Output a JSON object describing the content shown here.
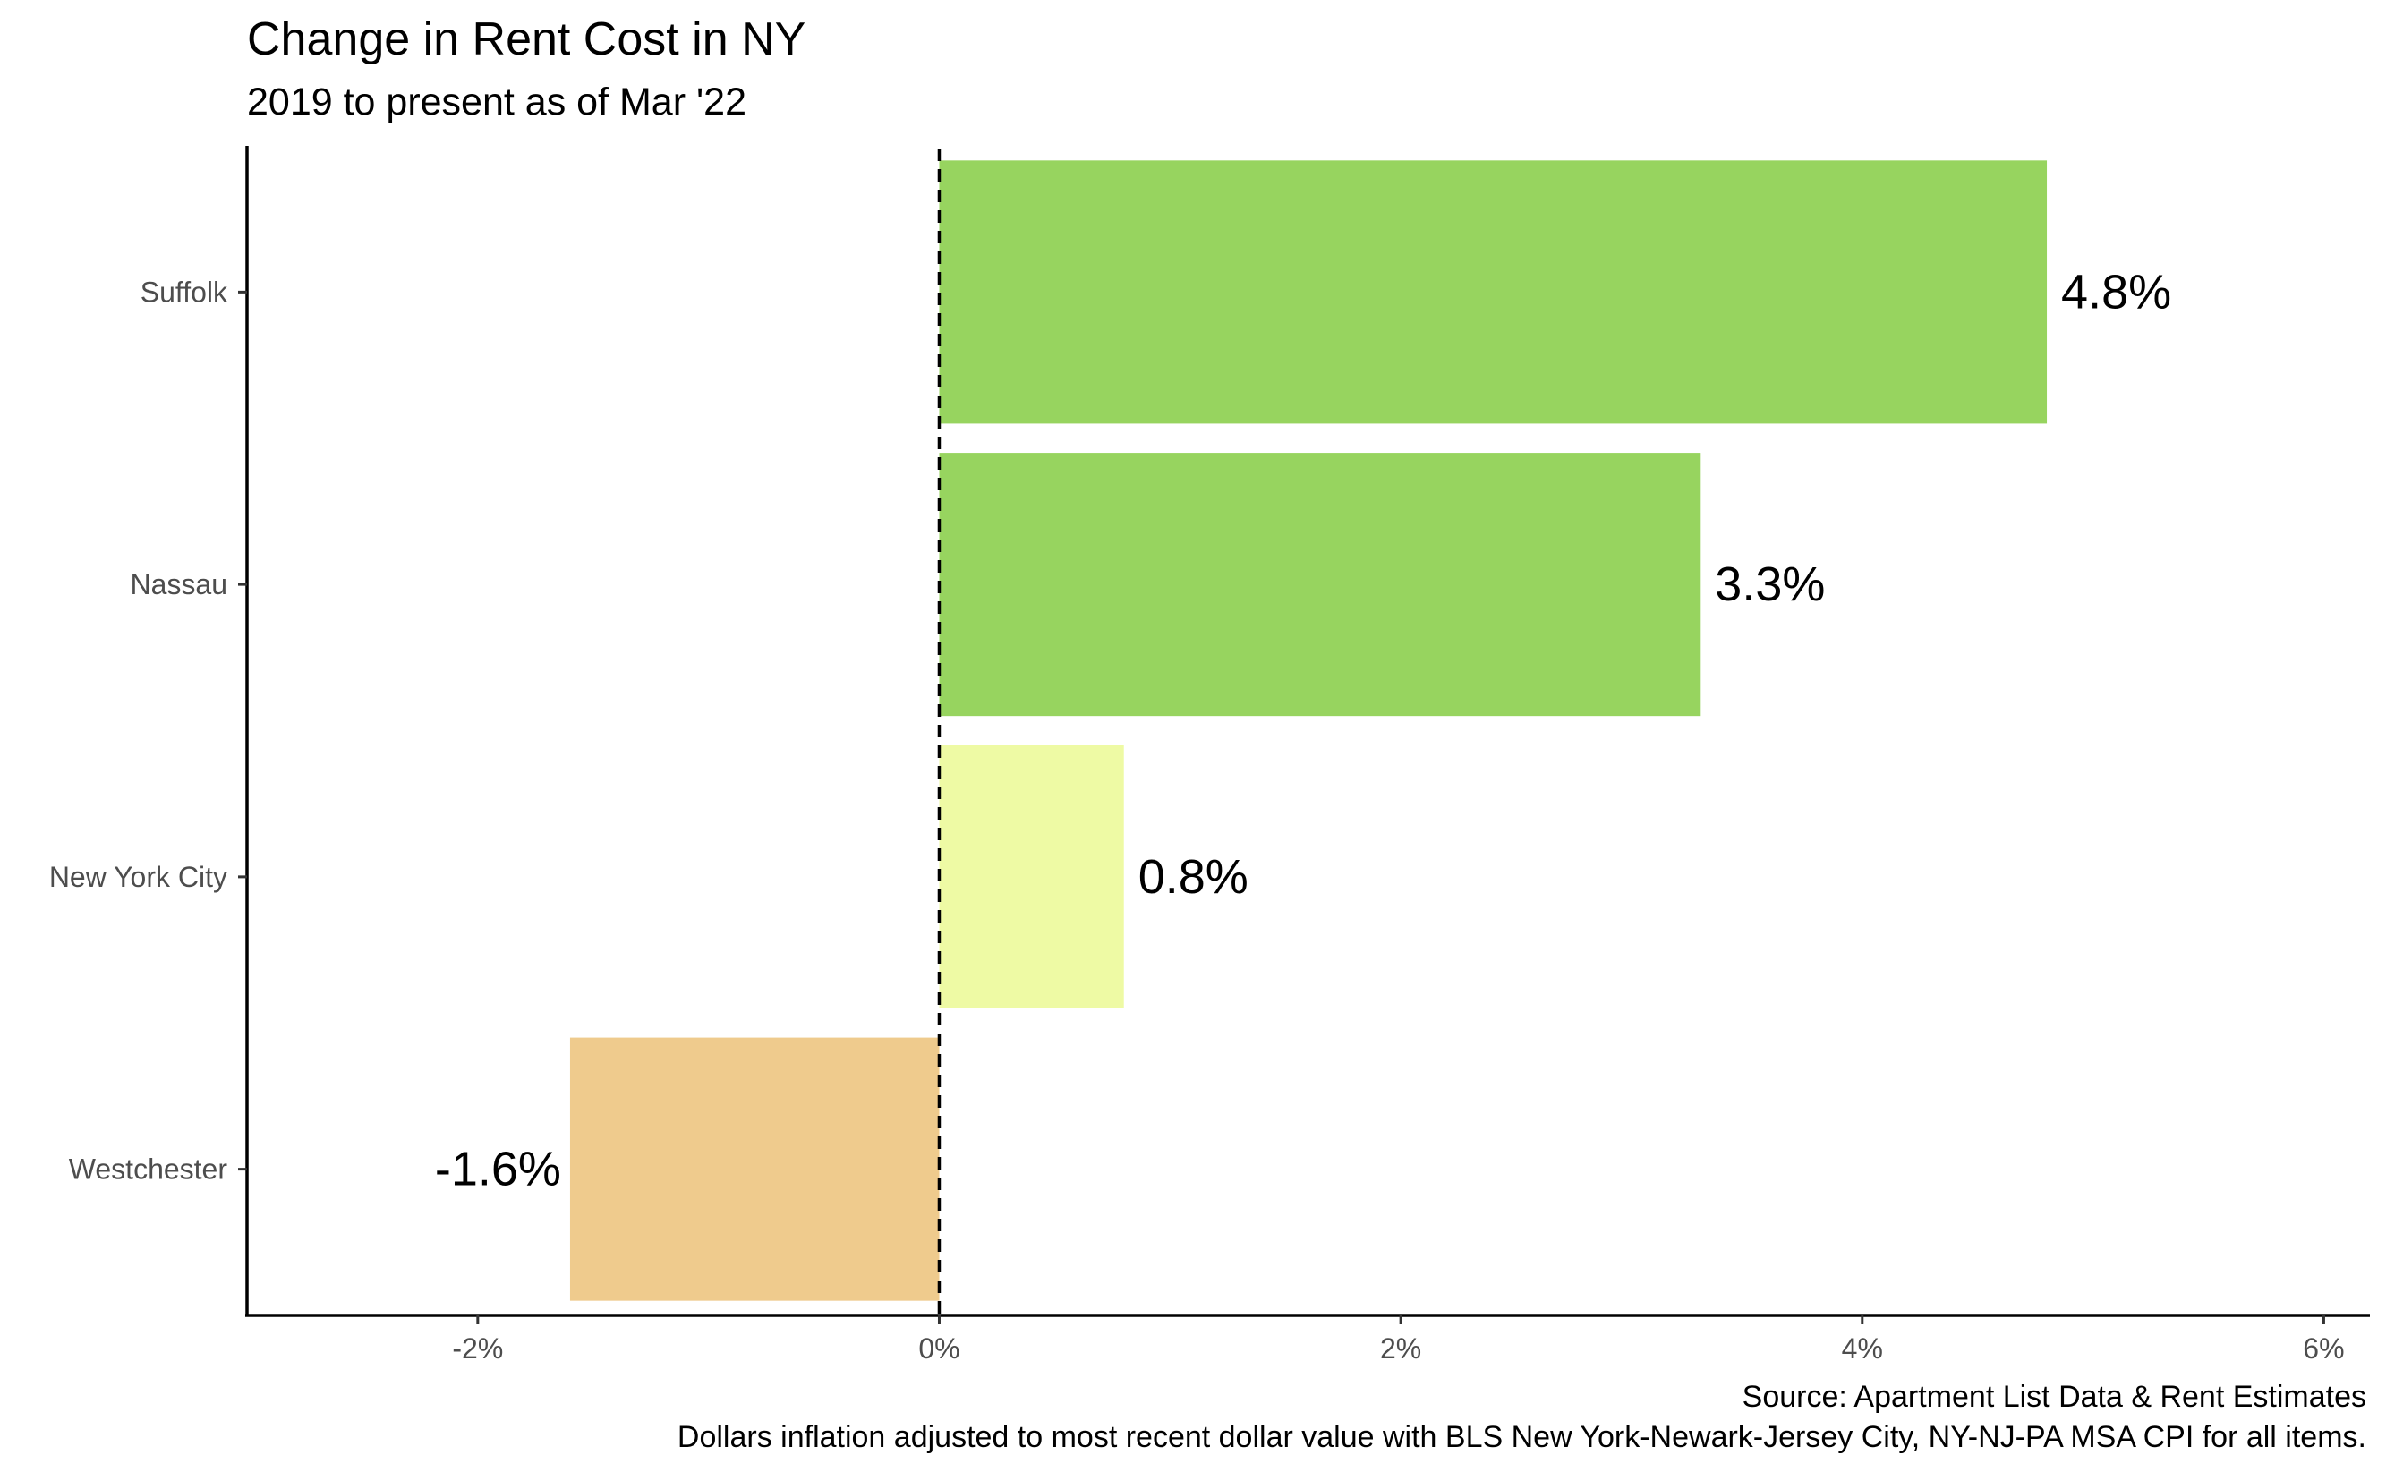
{
  "chart_data": {
    "type": "bar",
    "orientation": "horizontal",
    "title": "Change in Rent Cost in NY",
    "subtitle": "2019 to present as of Mar '22",
    "categories": [
      "Suffolk",
      "Nassau",
      "New York City",
      "Westchester"
    ],
    "values": [
      4.8,
      3.3,
      0.8,
      -1.6
    ],
    "value_labels": [
      "4.8%",
      "3.3%",
      "0.8%",
      "-1.6%"
    ],
    "colors": [
      "#97d45f",
      "#97d45f",
      "#eefaa4",
      "#efcb8d"
    ],
    "xlim": [
      -3,
      6.2
    ],
    "x_ticks": [
      -2,
      0,
      2,
      4,
      6
    ],
    "x_tick_labels": [
      "-2%",
      "0%",
      "2%",
      "4%",
      "6%"
    ],
    "reference_line": 0,
    "xlabel": "",
    "ylabel": "",
    "grid": false,
    "caption": [
      "Source: Apartment List Data & Rent Estimates",
      "Dollars inflation adjusted to most recent dollar value with BLS New York-Newark-Jersey City, NY-NJ-PA MSA CPI for all items."
    ]
  }
}
